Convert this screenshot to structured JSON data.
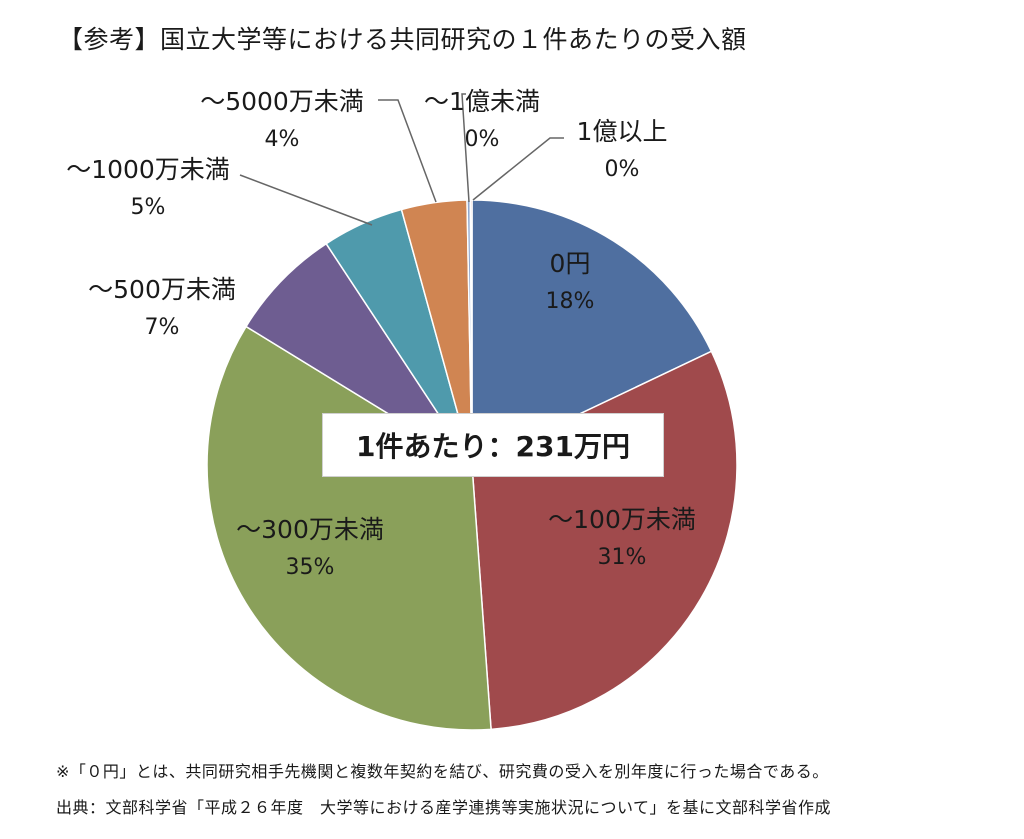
{
  "title": "【参考】国立大学等における共同研究の１件あたりの受入額",
  "chart_data": {
    "type": "pie",
    "slices": [
      {
        "label": "0円",
        "value": 18,
        "value_label": "18%",
        "color": "#4f6fa0"
      },
      {
        "label": "～100万未満",
        "value": 31,
        "value_label": "31%",
        "color": "#a04a4c"
      },
      {
        "label": "～300万未満",
        "value": 35,
        "value_label": "35%",
        "color": "#8aa05a"
      },
      {
        "label": "～500万未満",
        "value": 7,
        "value_label": "7%",
        "color": "#6e5d91"
      },
      {
        "label": "～1000万未満",
        "value": 5,
        "value_label": "5%",
        "color": "#4f9aac"
      },
      {
        "label": "～5000万未満",
        "value": 4,
        "value_label": "4%",
        "color": "#d08552"
      },
      {
        "label": "～1億未満",
        "value": 0.2,
        "value_label": "0%",
        "color": "#8fa8cf"
      },
      {
        "label": "1億以上",
        "value": 0.1,
        "value_label": "0%",
        "color": "#d08080"
      }
    ],
    "start_angle_deg": 0,
    "direction": "clockwise"
  },
  "callout": "1件あたり：231万円",
  "notes": {
    "note1": "※「０円」とは、共同研究相手先機関と複数年契約を結び、研究費の受入を別年度に行った場合である。",
    "source": "出典：文部科学省「平成２６年度　大学等における産学連携等実施状況について」を基に文部科学省作成"
  }
}
